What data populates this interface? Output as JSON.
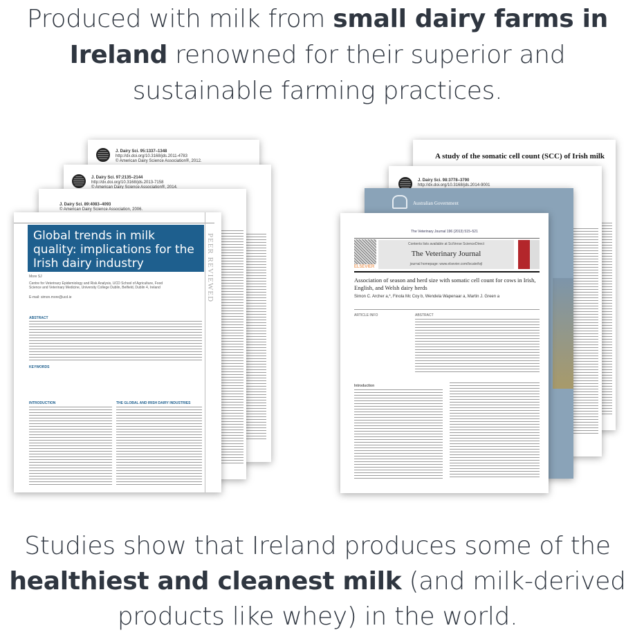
{
  "headline": {
    "part1": "Produced with milk from ",
    "bold": "small dairy farms in Ireland",
    "part2": " renowned for their superior and sustainable farming practices."
  },
  "footer": {
    "part1": "Studies show that Ireland produces some of the ",
    "bold": "healthiest and cleanest milk",
    "part2": " (and milk-derived products like whey) in the world."
  },
  "left_stack": {
    "paper1": {
      "journal": "J. Dairy Sci. 95:1337–1348",
      "doi": "http://dx.doi.org/10.3168/jds.2011-4783",
      "copyright": "© American Dairy Science Association®, 2012."
    },
    "paper2": {
      "journal": "J. Dairy Sci. 97:2135–2144",
      "doi": "http://dx.doi.org/10.3168/jds.2013-7158",
      "copyright": "© American Dairy Science Association®, 2014."
    },
    "paper3": {
      "journal": "J. Dairy Sci. 89:4083–4093",
      "copyright": "© American Dairy Science Association, 2006."
    },
    "front": {
      "title": "Global trends in milk quality: implications for the Irish dairy industry",
      "author": "More SJ",
      "affiliation": "Centre for Veterinary Epidemiology and Risk Analysis, UCD School of Agriculture, Food Science and Veterinary Medicine, University College Dublin, Belfield, Dublin 4, Ireland",
      "email": "E-mail: simon.more@ucd.ie",
      "side": "PEER REVIEWED",
      "abstract_head": "ABSTRACT",
      "keywords": "KEYWORDS",
      "intro_head": "INTRODUCTION",
      "section_head": "THE GLOBAL AND IRISH DAIRY INDUSTRIES"
    }
  },
  "right_stack": {
    "paper1": {
      "title": "A study of the somatic cell count (SCC) of Irish milk"
    },
    "paper2": {
      "journal": "J. Dairy Sci. 98:3778–3790",
      "doi": "http://dx.doi.org/10.3168/jds.2014-9001"
    },
    "paper3": {
      "org": "Australian Government"
    },
    "front": {
      "journal_ref": "The Veterinary Journal 196 (2013) 515–521",
      "contents": "Contents lists available at SciVerse ScienceDirect",
      "journal": "The Veterinary Journal",
      "homepage": "journal homepage: www.elsevier.com/locate/tvjl",
      "publisher": "ELSEVIER",
      "title": "Association of season and herd size with somatic cell count for cows in Irish, English, and Welsh dairy herds",
      "authors": "Simon C. Archer a,*, Finola Mc Coy b, Wendela Wapenaar a, Martin J. Green a",
      "article_info": "ARTICLE INFO",
      "abstract": "ABSTRACT",
      "intro": "Introduction"
    }
  },
  "colors": {
    "text": "#2f3640",
    "title_box": "#1e5f8e",
    "gov": "#8aa3b8",
    "elsevier": "#e87722"
  }
}
